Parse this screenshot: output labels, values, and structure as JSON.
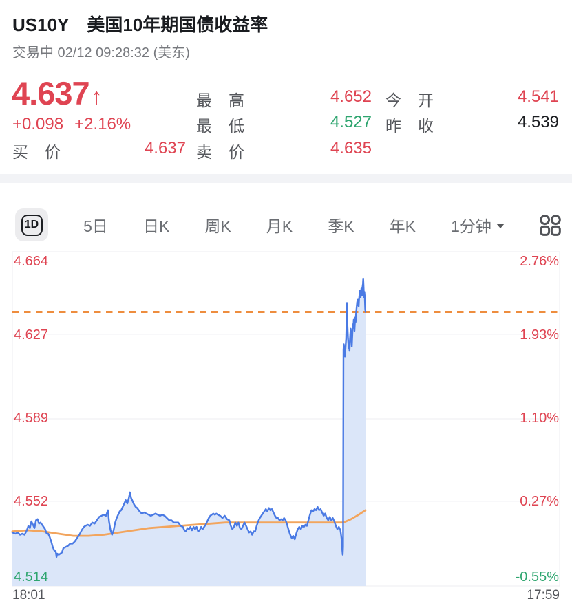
{
  "header": {
    "symbol": "US10Y",
    "name": "美国10年期国债收益率",
    "status_line": "交易中 02/12 09:28:32 (美东)"
  },
  "quote": {
    "price": "4.637",
    "arrow": "↑",
    "change": "+0.098",
    "change_pct": "+2.16%",
    "up_color": "#df4452",
    "bid": {
      "label": "买价",
      "value": "4.637",
      "color": "#df4452"
    },
    "mid_rows": [
      {
        "label": "最高",
        "value": "4.652",
        "color": "#df4452"
      },
      {
        "label": "最低",
        "value": "4.527",
        "color": "#2ea56f"
      },
      {
        "label": "卖价",
        "value": "4.635",
        "color": "#df4452"
      }
    ],
    "right_rows": [
      {
        "label": "今开",
        "value": "4.541",
        "color": "#df4452"
      },
      {
        "label": "昨收",
        "value": "4.539",
        "color": "#1c1e22"
      }
    ]
  },
  "toolbar": {
    "active_tab": "1D",
    "tabs": [
      "5日",
      "日K",
      "周K",
      "月K",
      "季K",
      "年K"
    ],
    "dropdown_label": "1分钟",
    "grid_icon": "grid-icon"
  },
  "chart_data": {
    "type": "area",
    "subtype": "intraday-1min-yield",
    "y_domain": [
      4.514,
      4.664
    ],
    "grid_values": [
      4.664,
      4.627,
      4.589,
      4.552,
      4.514
    ],
    "y_axis_left": [
      {
        "text": "4.664",
        "color": "#df4452"
      },
      {
        "text": "4.627",
        "color": "#df4452"
      },
      {
        "text": "4.589",
        "color": "#df4452"
      },
      {
        "text": "4.552",
        "color": "#df4452"
      },
      {
        "text": "4.514",
        "color": "#2ea56f"
      }
    ],
    "y_axis_right": [
      {
        "text": "2.76%",
        "color": "#df4452"
      },
      {
        "text": "1.93%",
        "color": "#df4452"
      },
      {
        "text": "1.10%",
        "color": "#df4452"
      },
      {
        "text": "0.27%",
        "color": "#df4452"
      },
      {
        "text": "-0.55%",
        "color": "#2ea56f"
      }
    ],
    "x_axis": {
      "start_label": "18:01",
      "end_label": "17:59",
      "total_minutes": 1438
    },
    "prev_close": 4.539,
    "current_value": 4.637,
    "dashed_line": {
      "value": 4.637,
      "color": "#ee8d3e"
    },
    "grid_color": "#ededf0",
    "series": [
      {
        "name": "price",
        "color": "#4a7ae4",
        "fill": "#dbe6f9",
        "points": [
          [
            0,
            4.538
          ],
          [
            8,
            4.5375
          ],
          [
            14,
            4.538
          ],
          [
            20,
            4.537
          ],
          [
            26,
            4.5375
          ],
          [
            32,
            4.537
          ],
          [
            38,
            4.539
          ],
          [
            42,
            4.541
          ],
          [
            46,
            4.54
          ],
          [
            50,
            4.543
          ],
          [
            54,
            4.5415
          ],
          [
            58,
            4.54
          ],
          [
            62,
            4.5435
          ],
          [
            66,
            4.544
          ],
          [
            70,
            4.542
          ],
          [
            74,
            4.5425
          ],
          [
            80,
            4.541
          ],
          [
            86,
            4.5395
          ],
          [
            90,
            4.5375
          ],
          [
            94,
            4.5375
          ],
          [
            98,
            4.536
          ],
          [
            102,
            4.534
          ],
          [
            106,
            4.5315
          ],
          [
            110,
            4.53
          ],
          [
            114,
            4.5295
          ],
          [
            116,
            4.527
          ],
          [
            118,
            4.5285
          ],
          [
            122,
            4.528
          ],
          [
            126,
            4.5285
          ],
          [
            130,
            4.529
          ],
          [
            134,
            4.531
          ],
          [
            140,
            4.5315
          ],
          [
            146,
            4.532
          ],
          [
            152,
            4.533
          ],
          [
            158,
            4.533
          ],
          [
            164,
            4.534
          ],
          [
            170,
            4.5355
          ],
          [
            176,
            4.537
          ],
          [
            182,
            4.539
          ],
          [
            188,
            4.5405
          ],
          [
            192,
            4.541
          ],
          [
            198,
            4.5415
          ],
          [
            204,
            4.541
          ],
          [
            210,
            4.5425
          ],
          [
            216,
            4.542
          ],
          [
            222,
            4.5435
          ],
          [
            228,
            4.545
          ],
          [
            234,
            4.5455
          ],
          [
            240,
            4.546
          ],
          [
            246,
            4.5455
          ],
          [
            251,
            4.548
          ],
          [
            254,
            4.543
          ],
          [
            258,
            4.539
          ],
          [
            262,
            4.537
          ],
          [
            266,
            4.539
          ],
          [
            270,
            4.5425
          ],
          [
            274,
            4.5445
          ],
          [
            278,
            4.546
          ],
          [
            282,
            4.5475
          ],
          [
            286,
            4.548
          ],
          [
            290,
            4.5495
          ],
          [
            294,
            4.551
          ],
          [
            298,
            4.5525
          ],
          [
            302,
            4.551
          ],
          [
            306,
            4.5535
          ],
          [
            309,
            4.556
          ],
          [
            312,
            4.5535
          ],
          [
            316,
            4.552
          ],
          [
            320,
            4.5505
          ],
          [
            324,
            4.5495
          ],
          [
            328,
            4.549
          ],
          [
            334,
            4.5475
          ],
          [
            340,
            4.5465
          ],
          [
            346,
            4.547
          ],
          [
            352,
            4.5465
          ],
          [
            358,
            4.546
          ],
          [
            364,
            4.5455
          ],
          [
            370,
            4.546
          ],
          [
            376,
            4.5465
          ],
          [
            382,
            4.546
          ],
          [
            388,
            4.5455
          ],
          [
            394,
            4.546
          ],
          [
            400,
            4.5455
          ],
          [
            406,
            4.5445
          ],
          [
            412,
            4.5435
          ],
          [
            418,
            4.5435
          ],
          [
            424,
            4.5425
          ],
          [
            430,
            4.5425
          ],
          [
            436,
            4.5425
          ],
          [
            442,
            4.541
          ],
          [
            448,
            4.5405
          ],
          [
            452,
            4.539
          ],
          [
            456,
            4.5385
          ],
          [
            460,
            4.54
          ],
          [
            464,
            4.5395
          ],
          [
            468,
            4.5405
          ],
          [
            472,
            4.539
          ],
          [
            476,
            4.5405
          ],
          [
            480,
            4.5395
          ],
          [
            484,
            4.5405
          ],
          [
            488,
            4.5385
          ],
          [
            492,
            4.539
          ],
          [
            496,
            4.5405
          ],
          [
            500,
            4.5395
          ],
          [
            504,
            4.5405
          ],
          [
            508,
            4.5415
          ],
          [
            512,
            4.543
          ],
          [
            516,
            4.5445
          ],
          [
            520,
            4.5455
          ],
          [
            524,
            4.546
          ],
          [
            528,
            4.5465
          ],
          [
            532,
            4.546
          ],
          [
            536,
            4.5465
          ],
          [
            540,
            4.546
          ],
          [
            546,
            4.5455
          ],
          [
            552,
            4.5445
          ],
          [
            558,
            4.5455
          ],
          [
            564,
            4.544
          ],
          [
            570,
            4.5435
          ],
          [
            574,
            4.541
          ],
          [
            578,
            4.5395
          ],
          [
            582,
            4.5405
          ],
          [
            586,
            4.5425
          ],
          [
            590,
            4.541
          ],
          [
            594,
            4.5425
          ],
          [
            598,
            4.54
          ],
          [
            602,
            4.5395
          ],
          [
            606,
            4.541
          ],
          [
            610,
            4.5425
          ],
          [
            614,
            4.541
          ],
          [
            618,
            4.5395
          ],
          [
            622,
            4.538
          ],
          [
            626,
            4.5385
          ],
          [
            630,
            4.537
          ],
          [
            634,
            4.5385
          ],
          [
            638,
            4.5385
          ],
          [
            642,
            4.541
          ],
          [
            646,
            4.543
          ],
          [
            650,
            4.5445
          ],
          [
            654,
            4.5455
          ],
          [
            658,
            4.5465
          ],
          [
            662,
            4.5475
          ],
          [
            666,
            4.5485
          ],
          [
            670,
            4.5475
          ],
          [
            674,
            4.549
          ],
          [
            678,
            4.548
          ],
          [
            682,
            4.5485
          ],
          [
            686,
            4.547
          ],
          [
            690,
            4.5455
          ],
          [
            694,
            4.5445
          ],
          [
            698,
            4.5445
          ],
          [
            702,
            4.5435
          ],
          [
            706,
            4.544
          ],
          [
            710,
            4.5435
          ],
          [
            714,
            4.5445
          ],
          [
            718,
            4.5435
          ],
          [
            722,
            4.5415
          ],
          [
            726,
            4.539
          ],
          [
            730,
            4.537
          ],
          [
            734,
            4.5355
          ],
          [
            738,
            4.5365
          ],
          [
            742,
            4.535
          ],
          [
            746,
            4.5375
          ],
          [
            750,
            4.5395
          ],
          [
            754,
            4.5405
          ],
          [
            758,
            4.5395
          ],
          [
            762,
            4.541
          ],
          [
            766,
            4.5405
          ],
          [
            770,
            4.5415
          ],
          [
            774,
            4.541
          ],
          [
            778,
            4.5435
          ],
          [
            782,
            4.546
          ],
          [
            786,
            4.548
          ],
          [
            790,
            4.5475
          ],
          [
            794,
            4.5485
          ],
          [
            798,
            4.548
          ],
          [
            802,
            4.5495
          ],
          [
            806,
            4.548
          ],
          [
            810,
            4.5485
          ],
          [
            814,
            4.547
          ],
          [
            818,
            4.5455
          ],
          [
            822,
            4.5465
          ],
          [
            826,
            4.5445
          ],
          [
            830,
            4.5435
          ],
          [
            834,
            4.545
          ],
          [
            838,
            4.5435
          ],
          [
            842,
            4.5445
          ],
          [
            846,
            4.543
          ],
          [
            850,
            4.541
          ],
          [
            854,
            4.5395
          ],
          [
            858,
            4.5405
          ],
          [
            862,
            4.539
          ],
          [
            864,
            4.5365
          ],
          [
            866,
            4.5335
          ],
          [
            867,
            4.53
          ],
          [
            868,
            4.528
          ],
          [
            869,
            4.5315
          ],
          [
            870,
            4.62
          ],
          [
            871,
            4.6225
          ],
          [
            872,
            4.6185
          ],
          [
            873,
            4.6215
          ],
          [
            874,
            4.617
          ],
          [
            875,
            4.6195
          ],
          [
            876,
            4.6225
          ],
          [
            877,
            4.625
          ],
          [
            878,
            4.632
          ],
          [
            879,
            4.641
          ],
          [
            880,
            4.6335
          ],
          [
            881,
            4.6285
          ],
          [
            882,
            4.625
          ],
          [
            883,
            4.6225
          ],
          [
            884,
            4.6205
          ],
          [
            885,
            4.6225
          ],
          [
            886,
            4.6195
          ],
          [
            887,
            4.6245
          ],
          [
            888,
            4.627
          ],
          [
            889,
            4.6295
          ],
          [
            890,
            4.6275
          ],
          [
            891,
            4.6245
          ],
          [
            892,
            4.6215
          ],
          [
            893,
            4.6255
          ],
          [
            894,
            4.629
          ],
          [
            895,
            4.6315
          ],
          [
            896,
            4.63
          ],
          [
            897,
            4.6335
          ],
          [
            898,
            4.631
          ],
          [
            899,
            4.6285
          ],
          [
            900,
            4.632
          ],
          [
            901,
            4.6345
          ],
          [
            902,
            4.6325
          ],
          [
            903,
            4.636
          ],
          [
            904,
            4.638
          ],
          [
            905,
            4.6395
          ],
          [
            906,
            4.6415
          ],
          [
            907,
            4.64
          ],
          [
            908,
            4.6425
          ],
          [
            909,
            4.641
          ],
          [
            910,
            4.6395
          ],
          [
            911,
            4.6425
          ],
          [
            912,
            4.6445
          ],
          [
            913,
            4.6465
          ],
          [
            914,
            4.645
          ],
          [
            915,
            4.6435
          ],
          [
            916,
            4.6455
          ],
          [
            917,
            4.6475
          ],
          [
            918,
            4.646
          ],
          [
            919,
            4.6445
          ],
          [
            920,
            4.648
          ],
          [
            921,
            4.6495
          ],
          [
            922,
            4.652
          ],
          [
            923,
            4.6475
          ],
          [
            924,
            4.6435
          ],
          [
            925,
            4.646
          ],
          [
            926,
            4.644
          ],
          [
            927,
            4.6385
          ],
          [
            928,
            4.637
          ]
        ]
      },
      {
        "name": "average",
        "color": "#f2a55e",
        "points": [
          [
            0,
            4.5385
          ],
          [
            40,
            4.539
          ],
          [
            80,
            4.5385
          ],
          [
            120,
            4.5375
          ],
          [
            160,
            4.5365
          ],
          [
            200,
            4.5365
          ],
          [
            240,
            4.537
          ],
          [
            280,
            4.538
          ],
          [
            320,
            4.539
          ],
          [
            360,
            4.54
          ],
          [
            400,
            4.5405
          ],
          [
            440,
            4.541
          ],
          [
            480,
            4.5415
          ],
          [
            520,
            4.542
          ],
          [
            560,
            4.5425
          ],
          [
            600,
            4.5425
          ],
          [
            640,
            4.5425
          ],
          [
            680,
            4.5425
          ],
          [
            720,
            4.5425
          ],
          [
            760,
            4.5425
          ],
          [
            800,
            4.5425
          ],
          [
            840,
            4.5425
          ],
          [
            870,
            4.5425
          ],
          [
            890,
            4.544
          ],
          [
            910,
            4.546
          ],
          [
            928,
            4.548
          ]
        ]
      }
    ]
  }
}
